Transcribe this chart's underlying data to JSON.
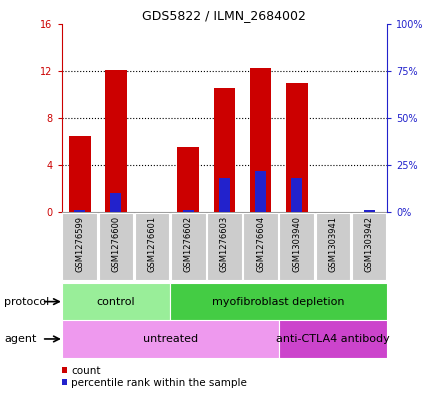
{
  "title": "GDS5822 / ILMN_2684002",
  "samples": [
    "GSM1276599",
    "GSM1276600",
    "GSM1276601",
    "GSM1276602",
    "GSM1276603",
    "GSM1276604",
    "GSM1303940",
    "GSM1303941",
    "GSM1303942"
  ],
  "counts": [
    6.5,
    12.1,
    0.05,
    5.5,
    10.5,
    12.2,
    11.0,
    0.05,
    0.05
  ],
  "percentiles": [
    1.0,
    10.0,
    0.05,
    1.0,
    18.0,
    22.0,
    18.0,
    0.05,
    1.0
  ],
  "ylim_left": [
    0,
    16
  ],
  "ylim_right": [
    0,
    100
  ],
  "yticks_left": [
    0,
    4,
    8,
    12,
    16
  ],
  "ytick_labels_left": [
    "0",
    "4",
    "8",
    "12",
    "16"
  ],
  "yticks_right": [
    0,
    25,
    50,
    75,
    100
  ],
  "ytick_labels_right": [
    "0%",
    "25%",
    "50%",
    "75%",
    "100%"
  ],
  "bar_color_red": "#cc0000",
  "bar_color_blue": "#2222cc",
  "bar_width": 0.6,
  "blue_bar_width": 0.3,
  "protocol_groups": [
    {
      "label": "control",
      "start": 0,
      "end": 3,
      "color": "#99ee99"
    },
    {
      "label": "myofibroblast depletion",
      "start": 3,
      "end": 9,
      "color": "#44cc44"
    }
  ],
  "agent_groups": [
    {
      "label": "untreated",
      "start": 0,
      "end": 6,
      "color": "#ee99ee"
    },
    {
      "label": "anti-CTLA4 antibody",
      "start": 6,
      "end": 9,
      "color": "#cc44cc"
    }
  ],
  "protocol_label": "protocol",
  "agent_label": "agent",
  "legend_count_label": "count",
  "legend_pct_label": "percentile rank within the sample",
  "grid_dotted_at": [
    4,
    8,
    12
  ]
}
